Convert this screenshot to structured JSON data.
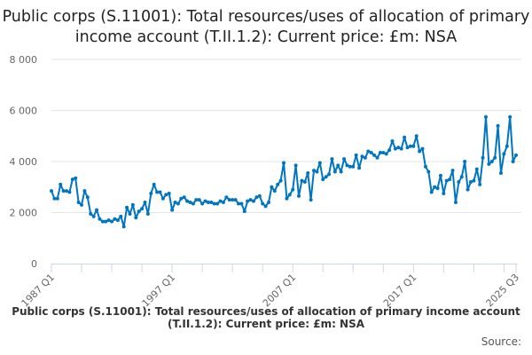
{
  "chart_data": {
    "type": "line",
    "title": "Public corps (S.11001): Total resources/uses of allocation of primary income account (T.II.1.2): Current price: £m: NSA",
    "legend": "Public corps (S.11001): Total resources/uses of allocation of primary income account (T.II.1.2): Current price: £m: NSA",
    "legend_placement": "bottom",
    "source_label": "Source:",
    "xlabel": "",
    "ylabel": "",
    "ylim": [
      0,
      8000
    ],
    "y_ticks": [
      0,
      2000,
      4000,
      6000,
      8000
    ],
    "y_tick_labels": [
      "0",
      "2 000",
      "4 000",
      "6 000",
      "8 000"
    ],
    "x_start": "1987 Q1",
    "x_end": "2025 Q3",
    "x_tick_labels": [
      {
        "index": 0,
        "label": "1987 Q1"
      },
      {
        "index": 40,
        "label": "1997 Q1"
      },
      {
        "index": 80,
        "label": "2007 Q1"
      },
      {
        "index": 120,
        "label": "2017 Q1"
      },
      {
        "index": 154,
        "label": "2025 Q3"
      }
    ],
    "grid": true,
    "color": "#0075c2",
    "series": [
      {
        "name": "Public corps (S.11001): Total resources/uses of allocation of primary income account (T.II.1.2): Current price: £m: NSA",
        "values": [
          2850,
          2550,
          2550,
          3100,
          2850,
          2850,
          2800,
          3300,
          3350,
          2400,
          2300,
          2850,
          2600,
          1950,
          1850,
          2100,
          1750,
          1650,
          1650,
          1700,
          1650,
          1750,
          1700,
          1850,
          1450,
          2200,
          1950,
          2300,
          1800,
          2050,
          2150,
          2400,
          1950,
          2750,
          3100,
          2800,
          2800,
          2550,
          2700,
          2750,
          2100,
          2400,
          2350,
          2550,
          2600,
          2450,
          2400,
          2350,
          2500,
          2500,
          2350,
          2450,
          2400,
          2400,
          2350,
          2350,
          2450,
          2400,
          2600,
          2500,
          2500,
          2500,
          2350,
          2350,
          2050,
          2450,
          2500,
          2450,
          2600,
          2650,
          2350,
          2250,
          2400,
          3000,
          2850,
          3100,
          3250,
          3950,
          2550,
          2700,
          2900,
          3850,
          2650,
          3250,
          3200,
          3550,
          2500,
          3650,
          3600,
          3950,
          3300,
          3400,
          3500,
          4100,
          3600,
          3850,
          3600,
          4100,
          3850,
          3800,
          3800,
          4250,
          3750,
          4200,
          4150,
          4400,
          4350,
          4250,
          4150,
          4350,
          4350,
          4300,
          4450,
          4800,
          4500,
          4550,
          4500,
          4950,
          4550,
          4600,
          4600,
          5000,
          4400,
          4500,
          3800,
          3600,
          2800,
          3000,
          2950,
          3450,
          2750,
          3250,
          3300,
          3650,
          2400,
          3200,
          3400,
          4000,
          2900,
          3200,
          3250,
          3700,
          3100,
          4150,
          5750,
          3900,
          4000,
          4150,
          5400,
          3550,
          4300,
          4600,
          5750,
          4000,
          4250
        ]
      }
    ]
  }
}
